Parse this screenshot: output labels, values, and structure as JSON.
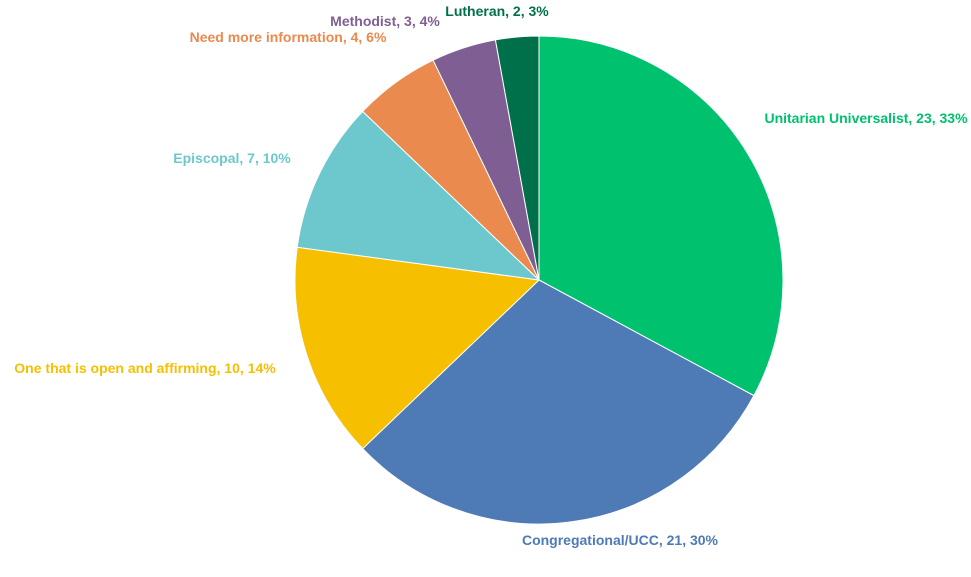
{
  "chart_data": {
    "type": "pie",
    "categories": [
      "Unitarian Universalist",
      "Congregational/UCC",
      "One that is open and affirming",
      "Episcopal",
      "Need more information",
      "Methodist",
      "Lutheran"
    ],
    "values": [
      23,
      21,
      10,
      7,
      4,
      3,
      2
    ],
    "value_labels": [
      "Unitarian Universalist, 23, 33%",
      "Congregational/UCC, 21, 30%",
      "One that is open and affirming, 10, 14%",
      "Episcopal, 7, 10%",
      "Need more information, 4, 6%",
      "Methodist, 3, 4%",
      "Lutheran, 2, 3%"
    ],
    "colors": [
      "#00c16e",
      "#4e7ab5",
      "#f6bf00",
      "#6cc8cc",
      "#ea8a4e",
      "#7f5f93",
      "#00704a"
    ]
  }
}
